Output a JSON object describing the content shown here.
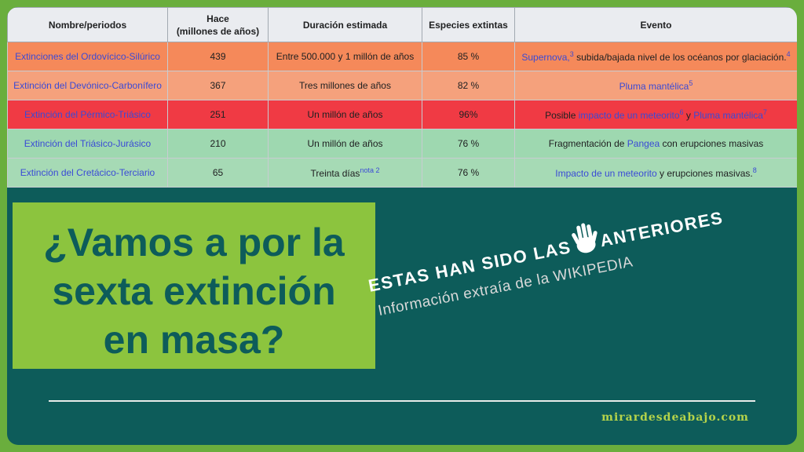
{
  "table": {
    "headers": {
      "name": "Nombre/periodos",
      "ago_l1": "Hace",
      "ago_l2": "(millones de años)",
      "duration": "Duración estimada",
      "species": "Especies extintas",
      "event": "Evento"
    },
    "rows": [
      {
        "name": "Extinciones del Ordovícico-Silúrico",
        "ago": "439",
        "duration": "Entre 500.000 y 1 millón de años",
        "species": "85 %",
        "event_a": "Supernova,",
        "sup_a": "3",
        "event_b": " subida/bajada nivel de los océanos por glaciación.",
        "sup_b": "4"
      },
      {
        "name": "Extinción del Devónico-Carbonífero",
        "ago": "367",
        "duration": "Tres millones de años",
        "species": "82 %",
        "event_a": "Pluma mantélica",
        "sup_a": "5"
      },
      {
        "name": "Extinción del Pérmico-Triásico",
        "ago": "251",
        "duration": "Un millón de años",
        "species": "96%",
        "event_a": "Posible ",
        "event_link1": "impacto de un meteorito",
        "sup_a": "6",
        "event_b": " y ",
        "event_link2": "Pluma mantélica",
        "sup_b": "7"
      },
      {
        "name": "Extinción del Triásico-Jurásico",
        "ago": "210",
        "duration": "Un millón de años",
        "species": "76 %",
        "event_a": "Fragmentación de ",
        "event_link1": "Pangea",
        "event_b": " con erupciones masivas"
      },
      {
        "name": "Extinción del Cretácico-Terciario",
        "ago": "65",
        "duration": "Treinta días",
        "duration_note": "nota 2",
        "species": "76 %",
        "event_link1": "Impacto de un meteorito",
        "event_b": " y erupciones masivas.",
        "sup_a": "8"
      }
    ]
  },
  "headline": {
    "line1": "¿Vamos a por la",
    "line2": "sexta extinción",
    "line3": "en masa?"
  },
  "tagline": {
    "part1": "ESTAS HAN SIDO LAS",
    "part2": "ANTERIORES",
    "source": "Información extraía de la WIKIPEDIA"
  },
  "site": "mirardesdeabajo.com",
  "colors": {
    "frame": "#6aae3d",
    "background": "#0d5c5a",
    "headline_box": "#8cc43e",
    "row_ordovician": "#f5895a",
    "row_devonian": "#f5a17c",
    "row_permian": "#f03a44",
    "row_triassic": "#9ed8b0",
    "row_cretaceous": "#a6dab5"
  },
  "icons": {
    "hand": "open-hand-icon"
  }
}
